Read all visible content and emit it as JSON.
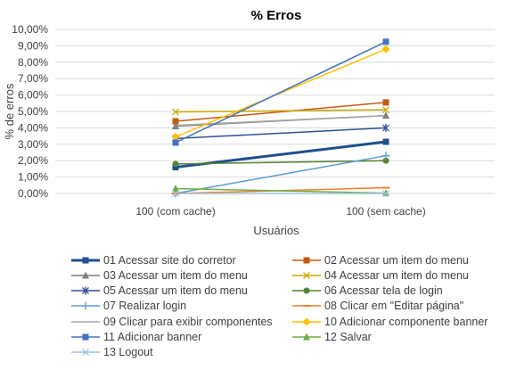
{
  "chart_data": {
    "type": "line",
    "title": "%  Erros",
    "xlabel": "Usuários",
    "ylabel": "% de erros",
    "categories": [
      "100 (com cache)",
      "100 (sem cache)"
    ],
    "ylim": [
      0,
      10
    ],
    "y_ticks": [
      "0,00%",
      "1,00%",
      "2,00%",
      "3,00%",
      "4,00%",
      "5,00%",
      "6,00%",
      "7,00%",
      "8,00%",
      "9,00%",
      "10,00%"
    ],
    "grid": true,
    "legend_position": "bottom",
    "series": [
      {
        "name": "01 Acessar site do corretor",
        "values": [
          1.6,
          3.15
        ],
        "color": "#1f4e8c",
        "marker": "square",
        "width": 3
      },
      {
        "name": "02 Acessar um item do menu",
        "values": [
          4.4,
          5.55
        ],
        "color": "#c55a11",
        "marker": "square",
        "width": 1.5
      },
      {
        "name": "03 Acessar um item do menu",
        "values": [
          4.1,
          4.75
        ],
        "color": "#7f7f7f",
        "marker": "triangle",
        "width": 1.5
      },
      {
        "name": "04 Acessar um item do menu",
        "values": [
          4.97,
          5.1
        ],
        "color": "#c9a500",
        "marker": "x",
        "width": 1.5
      },
      {
        "name": "05 Acessar um item do menu",
        "values": [
          3.35,
          4.0
        ],
        "color": "#2f4f8f",
        "marker": "star",
        "width": 1.5
      },
      {
        "name": "06 Acessar tela de login",
        "values": [
          1.8,
          2.0
        ],
        "color": "#548235",
        "marker": "circle",
        "width": 1.5
      },
      {
        "name": "07 Realizar login",
        "values": [
          0.0,
          2.3
        ],
        "color": "#5b9bd5",
        "marker": "plus",
        "width": 1.5
      },
      {
        "name": "08 Clicar em \"Editar página\"",
        "values": [
          0.0,
          0.35
        ],
        "color": "#ed7d31",
        "marker": "dash",
        "width": 1.5
      },
      {
        "name": "09 Clicar para exibir componentes",
        "values": [
          4.15,
          4.75
        ],
        "color": "#a5a5a5",
        "marker": "none",
        "width": 1.5
      },
      {
        "name": "10 Adicionar componente banner",
        "values": [
          3.45,
          8.8
        ],
        "color": "#ffc000",
        "marker": "diamond",
        "width": 1.5
      },
      {
        "name": "11 Adicionar banner",
        "values": [
          3.1,
          9.25
        ],
        "color": "#4472c4",
        "marker": "square",
        "width": 1.5
      },
      {
        "name": "12 Salvar",
        "values": [
          0.3,
          0.02
        ],
        "color": "#70ad47",
        "marker": "triangle",
        "width": 1.5
      },
      {
        "name": "13 Logout",
        "values": [
          0.0,
          0.0
        ],
        "color": "#9dc3e6",
        "marker": "x",
        "width": 1.5
      }
    ]
  }
}
